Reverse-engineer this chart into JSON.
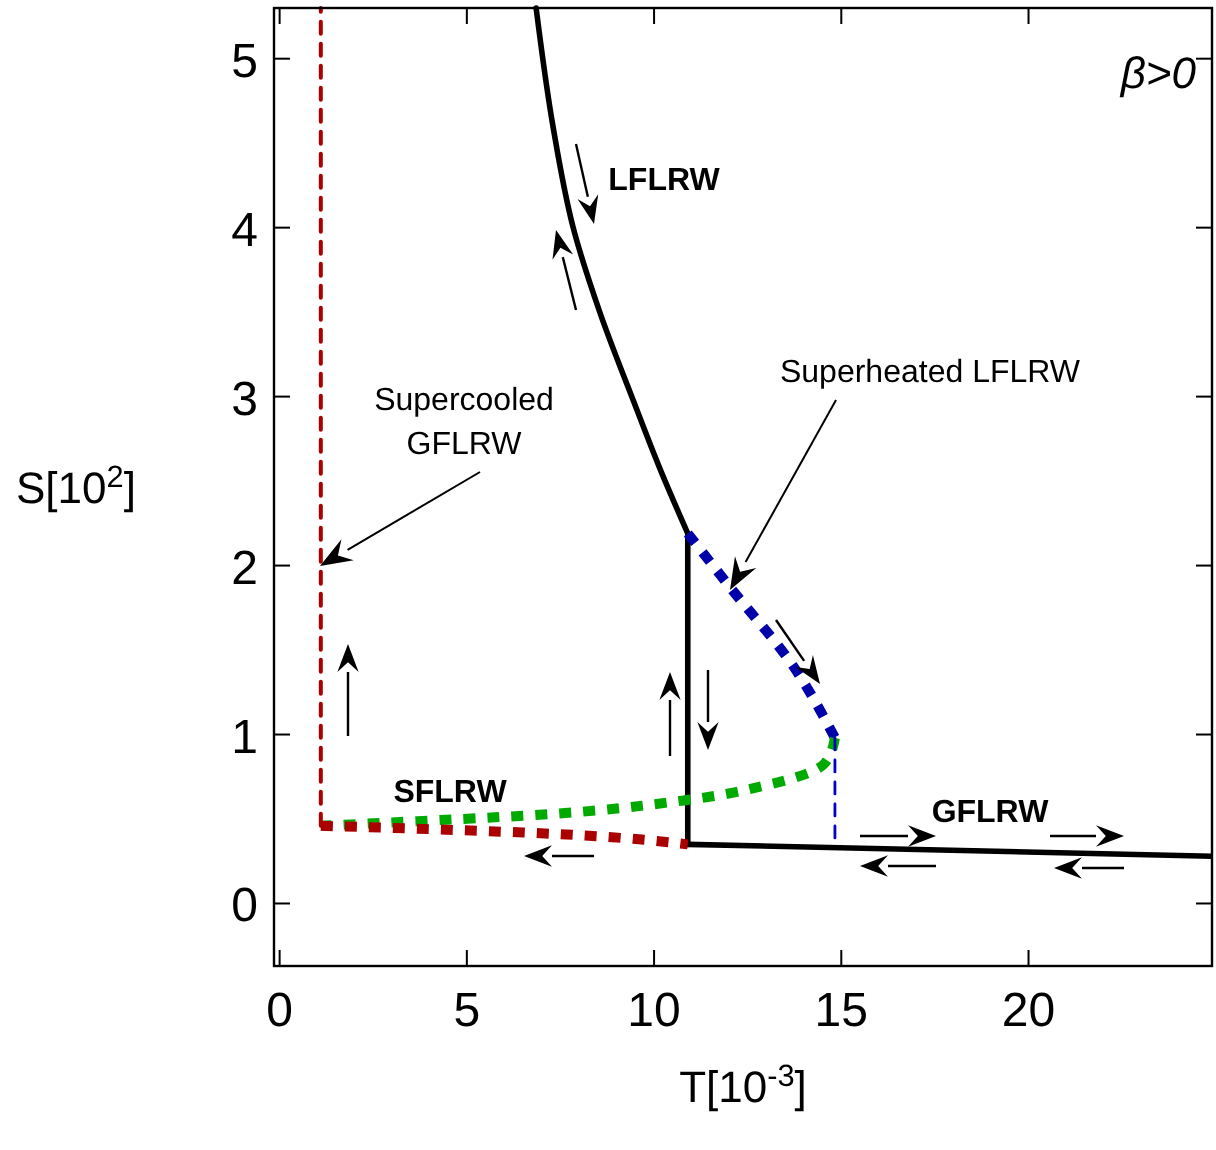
{
  "chart_data": {
    "type": "line",
    "xlabel": "T[10$^{-3}$]",
    "ylabel": "S[10$^{2}$]",
    "xlim": [
      -0.15,
      24.9
    ],
    "ylim": [
      -0.37,
      5.3
    ],
    "xticks": [
      0,
      5,
      10,
      15,
      20
    ],
    "yticks": [
      0,
      1,
      2,
      3,
      4,
      5
    ],
    "grid": false,
    "marker": "none",
    "series": [
      {
        "color": "#000000",
        "line_style": "solid",
        "x": [
          6.85,
          7.3,
          7.84,
          8.55,
          9.44,
          10.2,
          10.9
        ],
        "values": [
          5.3,
          4.6,
          4.0,
          3.5,
          2.98,
          2.55,
          2.19
        ]
      },
      {
        "color": "#000000",
        "line_style": "solid",
        "x": [
          10.9,
          10.9
        ],
        "values": [
          2.19,
          0.35
        ]
      },
      {
        "color": "#000000",
        "line_style": "solid",
        "x": [
          10.9,
          24.9
        ],
        "values": [
          0.35,
          0.28
        ]
      },
      {
        "color": "#0000aa",
        "line_style": "dotted",
        "x": [
          10.9,
          12.0,
          13.7,
          14.83
        ],
        "values": [
          2.19,
          1.88,
          1.41,
          0.98
        ]
      },
      {
        "color": "#00aa00",
        "line_style": "dotted",
        "x": [
          14.83,
          14.56,
          13,
          10.8,
          6.56,
          3,
          1.1
        ],
        "values": [
          0.98,
          0.83,
          0.7,
          0.61,
          0.52,
          0.48,
          0.46
        ]
      },
      {
        "color": "#aa0000",
        "line_style": "dotted",
        "x": [
          1.1,
          6.5,
          10.9
        ],
        "values": [
          0.46,
          0.42,
          0.35
        ]
      },
      {
        "color": "#aa0000",
        "line_style": "dashed",
        "x": [
          1.1,
          1.1
        ],
        "values": [
          0.46,
          5.3
        ]
      },
      {
        "color": "#0000cc",
        "line_style": "dashed",
        "x": [
          14.83,
          14.83
        ],
        "values": [
          0.98,
          0.35
        ]
      }
    ],
    "annotations": [
      "β>0",
      "Supercooled GFLRW",
      "Superheated LFLRW",
      "LFLRW",
      "SFLRW",
      "GFLRW"
    ]
  }
}
